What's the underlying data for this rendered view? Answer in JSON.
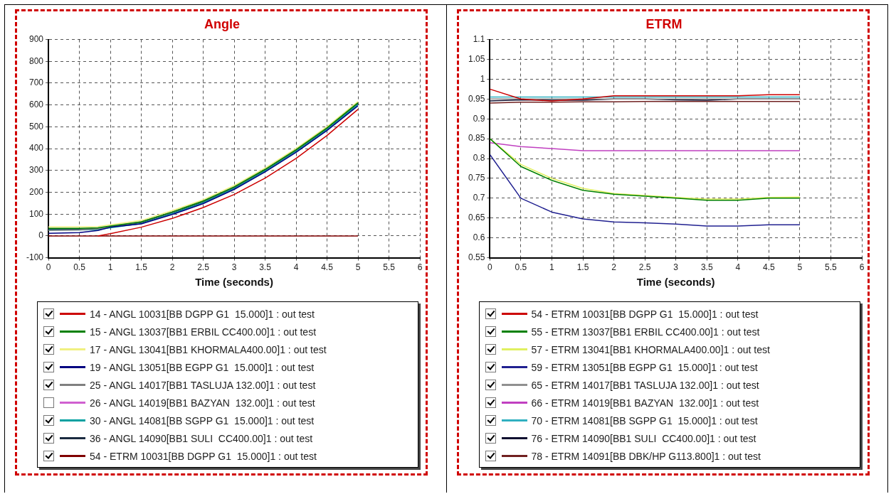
{
  "chart_data": [
    {
      "type": "line",
      "title": "Angle",
      "xlabel": "Time (seconds)",
      "x": [
        0,
        0.5,
        0.8,
        1,
        1.5,
        2,
        2.5,
        3,
        3.5,
        4,
        4.5,
        5
      ],
      "xlim": [
        0,
        6
      ],
      "xticks": [
        0,
        0.5,
        1,
        1.5,
        2,
        2.5,
        3,
        3.5,
        4,
        4.5,
        5,
        5.5,
        6
      ],
      "ylim": [
        -100,
        900
      ],
      "yticks": [
        -100,
        0,
        100,
        200,
        300,
        400,
        500,
        600,
        700,
        800,
        900
      ],
      "grid": true,
      "legend": "bottom",
      "marker": "none",
      "line_style": "solid",
      "series": [
        {
          "name": "14 - ANGL 10031[BB DGPP G1  15.000]1 : out test",
          "color": "#cc0000",
          "values": [
            null,
            null,
            0,
            10,
            40,
            80,
            130,
            190,
            265,
            355,
            460,
            580
          ]
        },
        {
          "name": "15 - ANGL 13037[BB1 ERBIL CC400.00]1 : out test",
          "color": "#008000",
          "values": [
            35,
            35,
            37,
            45,
            65,
            110,
            160,
            225,
            305,
            395,
            495,
            610
          ]
        },
        {
          "name": "17 - ANGL 13041[BB1 KHORMALA400.00]1 : out test",
          "color": "#f0f080",
          "values": [
            41,
            41,
            43,
            51,
            71,
            116,
            166,
            231,
            311,
            401,
            501,
            616
          ]
        },
        {
          "name": "19 - ANGL 13051[BB EGPP G1  15.000]1 : out test",
          "color": "#000080",
          "values": [
            12,
            15,
            25,
            40,
            55,
            98,
            148,
            213,
            293,
            383,
            483,
            596
          ]
        },
        {
          "name": "25 - ANGL 14017[BB1 TASLUJA 132.00]1 : out test",
          "color": "#808080",
          "values": [
            25,
            27,
            32,
            43,
            64,
            109,
            159,
            224,
            304,
            394,
            494,
            609
          ]
        },
        {
          "name": "26 - ANGL 14019[BB1 BAZYAN  132.00]1 : out test",
          "color": "#d060d0",
          "values": [
            null,
            null,
            null,
            null,
            null,
            null,
            null,
            null,
            null,
            null,
            null,
            null
          ]
        },
        {
          "name": "30 - ANGL 14081[BB SGPP G1  15.000]1 : out test",
          "color": "#00a0a0",
          "values": [
            27,
            27,
            29,
            37,
            57,
            102,
            152,
            217,
            297,
            387,
            487,
            602
          ]
        },
        {
          "name": "36 - ANGL 14090[BB1 SULI  CC400.00]1 : out test",
          "color": "#1a2a40",
          "values": [
            31,
            31,
            33,
            41,
            61,
            106,
            156,
            221,
            301,
            391,
            491,
            606
          ]
        },
        {
          "name": "54 - ETRM 10031[BB DGPP G1  15.000]1 : out test",
          "color": "#800000",
          "values": [
            0,
            0,
            0,
            0,
            0,
            0,
            0,
            0,
            0,
            0,
            0,
            0
          ]
        }
      ]
    },
    {
      "type": "line",
      "title": "ETRM",
      "xlabel": "Time (seconds)",
      "x": [
        0,
        0.5,
        1,
        1.5,
        2,
        2.5,
        3,
        3.5,
        4,
        4.5,
        5
      ],
      "xlim": [
        0,
        6
      ],
      "xticks": [
        0,
        0.5,
        1,
        1.5,
        2,
        2.5,
        3,
        3.5,
        4,
        4.5,
        5,
        5.5,
        6
      ],
      "ylim": [
        0.55,
        1.1
      ],
      "yticks": [
        0.55,
        0.6,
        0.65,
        0.7,
        0.75,
        0.8,
        0.85,
        0.9,
        0.95,
        1,
        1.05,
        1.1
      ],
      "grid": true,
      "legend": "bottom",
      "marker": "none",
      "line_style": "solid",
      "series": [
        {
          "name": "54 - ETRM 10031[BB DGPP G1  15.000]1 : out test",
          "color": "#cc0000",
          "values": [
            0.975,
            0.95,
            0.945,
            0.95,
            0.958,
            0.958,
            0.958,
            0.958,
            0.958,
            0.961,
            0.961
          ]
        },
        {
          "name": "55 - ETRM 13037[BB1 ERBIL CC400.00]1 : out test",
          "color": "#008000",
          "values": [
            0.85,
            0.78,
            0.745,
            0.72,
            0.71,
            0.705,
            0.7,
            0.695,
            0.695,
            0.7,
            0.7
          ]
        },
        {
          "name": "57 - ETRM 13041[BB1 KHORMALA400.00]1 : out test",
          "color": "#e0f060",
          "values": [
            0.85,
            0.785,
            0.75,
            0.725,
            0.712,
            0.707,
            0.702,
            0.698,
            0.698,
            0.702,
            0.703
          ]
        },
        {
          "name": "59 - ETRM 13051[BB EGPP G1  15.000]1 : out test",
          "color": "#202090",
          "values": [
            0.81,
            0.7,
            0.665,
            0.648,
            0.64,
            0.638,
            0.635,
            0.63,
            0.63,
            0.633,
            0.633
          ]
        },
        {
          "name": "65 - ETRM 14017[BB1 TASLUJA 132.00]1 : out test",
          "color": "#909090",
          "values": [
            0.95,
            0.95,
            0.95,
            0.95,
            0.95,
            0.95,
            0.95,
            0.95,
            0.95,
            0.95,
            0.95
          ]
        },
        {
          "name": "66 - ETRM 14019[BB1 BAZYAN  132.00]1 : out test",
          "color": "#c040c0",
          "values": [
            0.84,
            0.83,
            0.825,
            0.82,
            0.82,
            0.82,
            0.82,
            0.82,
            0.82,
            0.82,
            0.82
          ]
        },
        {
          "name": "70 - ETRM 14081[BB SGPP G1  15.000]1 : out test",
          "color": "#30b0c0",
          "values": [
            0.955,
            0.955,
            0.955,
            0.955,
            0.955,
            0.955,
            0.955,
            0.955,
            0.955,
            0.955,
            0.955
          ]
        },
        {
          "name": "76 - ETRM 14090[BB1 SULI  CC400.00]1 : out test",
          "color": "#101030",
          "values": [
            0.945,
            0.948,
            0.947,
            0.947,
            0.95,
            0.95,
            0.948,
            0.947,
            0.95,
            0.95,
            0.95
          ]
        },
        {
          "name": "78 - ETRM 14091[BB DBK/HP G113.800]1 : out test",
          "color": "#702020",
          "values": [
            0.94,
            0.942,
            0.942,
            0.943,
            0.943,
            0.944,
            0.944,
            0.944,
            0.944,
            0.944,
            0.944
          ]
        }
      ]
    }
  ]
}
